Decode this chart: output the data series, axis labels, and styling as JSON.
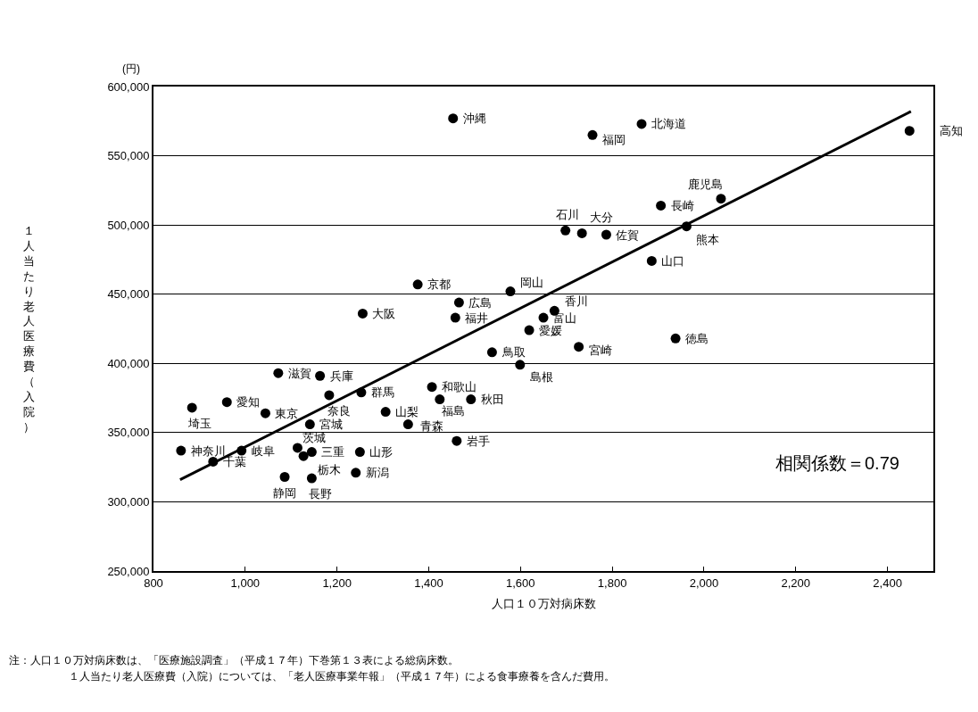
{
  "chart_data": {
    "type": "scatter",
    "xlabel": "人口１０万対病床数",
    "ylabel": "１人当たり老人医療費（入院）",
    "xlim": [
      800,
      2500
    ],
    "ylim": [
      250000,
      600000
    ],
    "xticks": [
      800,
      {
        "value": 1000,
        "label": "1,000"
      },
      {
        "value": 1200,
        "label": "1,200"
      },
      {
        "value": 1400,
        "label": "1,400"
      },
      {
        "value": 1600,
        "label": "1,600"
      },
      {
        "value": 1800,
        "label": "1,800"
      },
      {
        "value": 2000,
        "label": "2,000"
      },
      {
        "value": 2200,
        "label": "2,200"
      },
      {
        "value": 2400,
        "label": "2,400"
      }
    ],
    "yticks": [
      {
        "value": 250000,
        "label": "250,000"
      },
      {
        "value": 300000,
        "label": "300,000"
      },
      {
        "value": 350000,
        "label": "350,000"
      },
      {
        "value": 400000,
        "label": "400,000"
      },
      {
        "value": 450000,
        "label": "450,000"
      },
      {
        "value": 500000,
        "label": "500,000"
      },
      {
        "value": 550000,
        "label": "550,000"
      },
      {
        "value": 600000,
        "label": "600,000"
      }
    ],
    "grid": "y",
    "marker": "circle",
    "series": [
      {
        "color": "#000000",
        "x": [
          1453,
          1376,
          1578,
          1466,
          1458,
          1256,
          1757,
          1864,
          2448,
          1906,
          2037,
          1962,
          1698,
          1734,
          1787,
          1886,
          1674,
          1650,
          1938,
          1727,
          1619,
          1538,
          1599,
          1072,
          1163,
          1183,
          1253,
          1407,
          1424,
          1492,
          960,
          884,
          1044,
          1306,
          1141,
          1355,
          1461,
          860,
          992,
          930,
          1114,
          1145,
          1127,
          1250,
          1241,
          1086,
          1145
        ],
        "values": [
          577000,
          457000,
          452000,
          444000,
          433000,
          436000,
          565000,
          573000,
          568000,
          514000,
          519000,
          499000,
          496000,
          494000,
          493000,
          474000,
          438000,
          433000,
          418000,
          412000,
          424000,
          408000,
          399000,
          393000,
          391000,
          377000,
          379000,
          383000,
          374000,
          374000,
          372000,
          368000,
          364000,
          365000,
          356000,
          356000,
          344000,
          337000,
          337000,
          329000,
          339000,
          336000,
          333000,
          336000,
          321000,
          318000,
          317000
        ]
      },
      {
        "type": "line",
        "color": "#000000",
        "line_style": "solid",
        "marker": "none",
        "x": [
          858,
          2451
        ],
        "values": [
          316000,
          582000
        ]
      }
    ],
    "annotations": [
      {
        "text": "沖縄",
        "x": 1453,
        "y": 577000
      },
      {
        "text": "京都",
        "x": 1376,
        "y": 457000
      },
      {
        "text": "岡山",
        "x": 1578,
        "y": 452000
      },
      {
        "text": "広島",
        "x": 1466,
        "y": 444000
      },
      {
        "text": "福井",
        "x": 1458,
        "y": 433000
      },
      {
        "text": "大阪",
        "x": 1256,
        "y": 436000
      },
      {
        "text": "福岡",
        "x": 1757,
        "y": 565000
      },
      {
        "text": "北海道",
        "x": 1864,
        "y": 573000
      },
      {
        "text": "高知",
        "x": 2448,
        "y": 568000
      },
      {
        "text": "長崎",
        "x": 1906,
        "y": 514000
      },
      {
        "text": "鹿児島",
        "x": 2037,
        "y": 519000
      },
      {
        "text": "熊本",
        "x": 1962,
        "y": 499000
      },
      {
        "text": "石川",
        "x": 1698,
        "y": 496000
      },
      {
        "text": "大分",
        "x": 1734,
        "y": 494000
      },
      {
        "text": "佐賀",
        "x": 1787,
        "y": 493000
      },
      {
        "text": "山口",
        "x": 1886,
        "y": 474000
      },
      {
        "text": "香川",
        "x": 1674,
        "y": 438000
      },
      {
        "text": "富山",
        "x": 1650,
        "y": 433000
      },
      {
        "text": "徳島",
        "x": 1938,
        "y": 418000
      },
      {
        "text": "宮崎",
        "x": 1727,
        "y": 412000
      },
      {
        "text": "愛媛",
        "x": 1619,
        "y": 424000
      },
      {
        "text": "鳥取",
        "x": 1538,
        "y": 408000
      },
      {
        "text": "島根",
        "x": 1599,
        "y": 399000
      },
      {
        "text": "滋賀",
        "x": 1072,
        "y": 393000
      },
      {
        "text": "兵庫",
        "x": 1163,
        "y": 391000
      },
      {
        "text": "奈良",
        "x": 1183,
        "y": 377000
      },
      {
        "text": "群馬",
        "x": 1253,
        "y": 379000
      },
      {
        "text": "和歌山",
        "x": 1407,
        "y": 383000
      },
      {
        "text": "福島",
        "x": 1424,
        "y": 374000
      },
      {
        "text": "秋田",
        "x": 1492,
        "y": 374000
      },
      {
        "text": "愛知",
        "x": 960,
        "y": 372000
      },
      {
        "text": "埼玉",
        "x": 884,
        "y": 368000
      },
      {
        "text": "東京",
        "x": 1044,
        "y": 364000
      },
      {
        "text": "山梨",
        "x": 1306,
        "y": 365000
      },
      {
        "text": "宮城",
        "x": 1141,
        "y": 356000
      },
      {
        "text": "青森",
        "x": 1355,
        "y": 356000
      },
      {
        "text": "岩手",
        "x": 1461,
        "y": 344000
      },
      {
        "text": "神奈川",
        "x": 860,
        "y": 337000
      },
      {
        "text": "岐阜",
        "x": 992,
        "y": 337000
      },
      {
        "text": "千葉",
        "x": 930,
        "y": 329000
      },
      {
        "text": "茨城",
        "x": 1114,
        "y": 339000
      },
      {
        "text": "三重",
        "x": 1145,
        "y": 336000
      },
      {
        "text": "栃木",
        "x": 1127,
        "y": 333000
      },
      {
        "text": "山形",
        "x": 1250,
        "y": 336000
      },
      {
        "text": "新潟",
        "x": 1241,
        "y": 321000
      },
      {
        "text": "静岡",
        "x": 1086,
        "y": 318000
      },
      {
        "text": "長野",
        "x": 1145,
        "y": 317000
      },
      "(円)",
      "相関係数＝0.79",
      "注：人口１０万対病床数は、「医療施設調査」（平成１７年）下巻第１３表による総病床数。",
      "１人当たり老人医療費（入院）については、「老人医療事業年報」（平成１７年）による食事療養を含んだ費用。"
    ]
  }
}
